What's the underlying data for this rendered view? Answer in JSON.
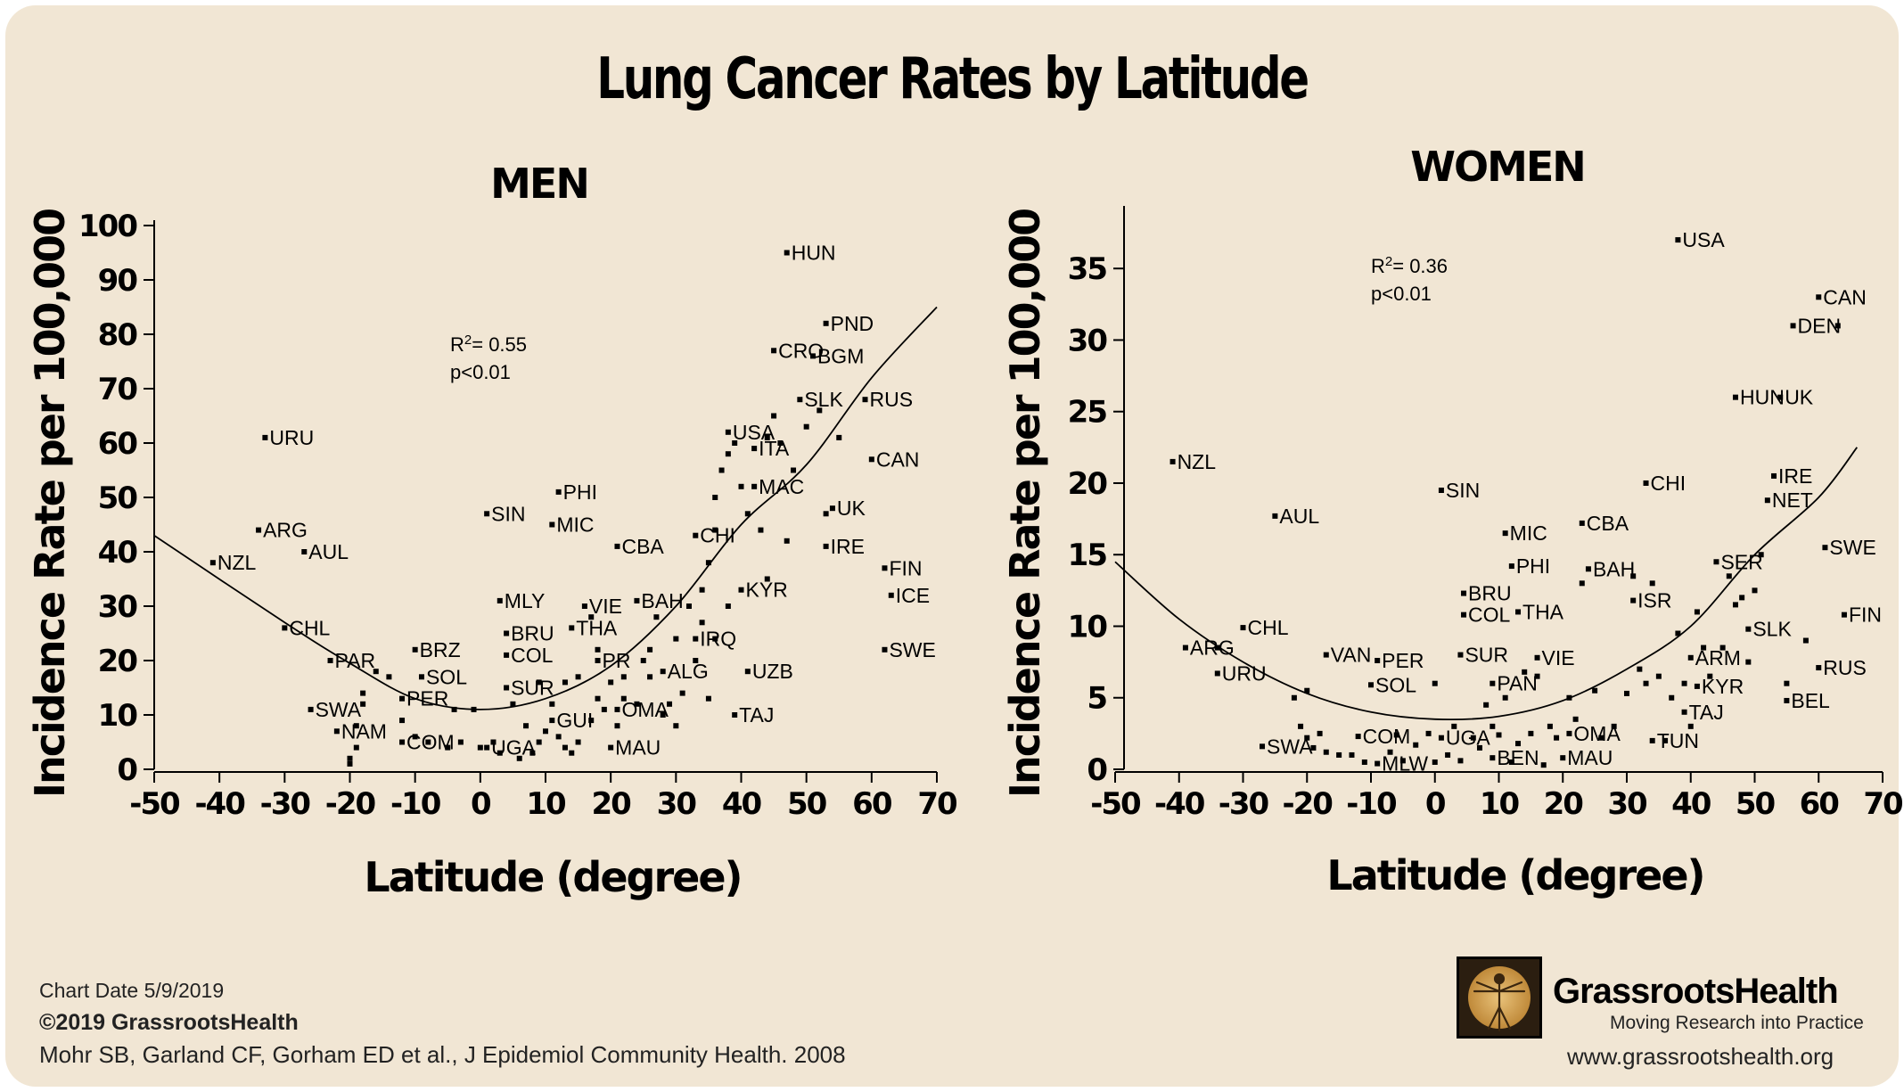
{
  "title": "Lung Cancer Rates by Latitude",
  "footer": {
    "chart_date": "Chart Date 5/9/2019",
    "copyright": "©2019 GrassrootsHealth",
    "citation": "Mohr SB, Garland CF, Gorham ED et al., J Epidemiol Community Health. 2008"
  },
  "brand": {
    "name": "GrassrootsHealth",
    "tagline": "Moving Research into Practice",
    "url": "www.grassrootshealth.org"
  },
  "chart_data": [
    {
      "type": "scatter",
      "title": "MEN",
      "xlabel": "Latitude (degree)",
      "ylabel": "Incidence Rate per 100,000",
      "xlim": [
        -50,
        70
      ],
      "ylim": [
        0,
        100
      ],
      "xticks": [
        -50,
        -40,
        -30,
        -20,
        -10,
        0,
        10,
        20,
        30,
        40,
        50,
        60,
        70
      ],
      "yticks": [
        0,
        10,
        20,
        30,
        40,
        50,
        60,
        70,
        80,
        90,
        100
      ],
      "stats": {
        "r2": "= 0.55",
        "p": "p<0.01"
      },
      "trendline": {
        "type": "quadratic",
        "points": [
          [
            -50,
            43
          ],
          [
            -30,
            27
          ],
          [
            -20,
            19.5
          ],
          [
            -10,
            13
          ],
          [
            0,
            11
          ],
          [
            10,
            13
          ],
          [
            20,
            19
          ],
          [
            30,
            30
          ],
          [
            40,
            45
          ],
          [
            50,
            56
          ],
          [
            60,
            72
          ],
          [
            70,
            85
          ]
        ]
      },
      "labeled_points": [
        {
          "label": "HUN",
          "x": 47,
          "y": 95
        },
        {
          "label": "PND",
          "x": 53,
          "y": 82
        },
        {
          "label": "CRO",
          "x": 45,
          "y": 77
        },
        {
          "label": "BGM",
          "x": 51,
          "y": 76
        },
        {
          "label": "SLK",
          "x": 49,
          "y": 68
        },
        {
          "label": "RUS",
          "x": 59,
          "y": 68
        },
        {
          "label": "USA",
          "x": 38,
          "y": 62
        },
        {
          "label": "URU",
          "x": -33,
          "y": 61
        },
        {
          "label": "ITA",
          "x": 42,
          "y": 59
        },
        {
          "label": "CAN",
          "x": 60,
          "y": 57
        },
        {
          "label": "PHI",
          "x": 12,
          "y": 51
        },
        {
          "label": "MAC",
          "x": 42,
          "y": 52
        },
        {
          "label": "UK",
          "x": 54,
          "y": 48
        },
        {
          "label": "SIN",
          "x": 1,
          "y": 47
        },
        {
          "label": "MIC",
          "x": 11,
          "y": 45
        },
        {
          "label": "ARG",
          "x": -34,
          "y": 44
        },
        {
          "label": "CHI",
          "x": 33,
          "y": 43
        },
        {
          "label": "CBA",
          "x": 21,
          "y": 41
        },
        {
          "label": "IRE",
          "x": 53,
          "y": 41
        },
        {
          "label": "AUL",
          "x": -27,
          "y": 40
        },
        {
          "label": "NZL",
          "x": -41,
          "y": 38
        },
        {
          "label": "FIN",
          "x": 62,
          "y": 37
        },
        {
          "label": "KYR",
          "x": 40,
          "y": 33
        },
        {
          "label": "ICE",
          "x": 63,
          "y": 32
        },
        {
          "label": "BAH",
          "x": 24,
          "y": 31
        },
        {
          "label": "MLY",
          "x": 3,
          "y": 31
        },
        {
          "label": "VIE",
          "x": 16,
          "y": 30
        },
        {
          "label": "THA",
          "x": 14,
          "y": 26
        },
        {
          "label": "CHL",
          "x": -30,
          "y": 26
        },
        {
          "label": "BRU",
          "x": 4,
          "y": 25
        },
        {
          "label": "IRQ",
          "x": 33,
          "y": 24
        },
        {
          "label": "SWE",
          "x": 62,
          "y": 22
        },
        {
          "label": "BRZ",
          "x": -10,
          "y": 22
        },
        {
          "label": "COL",
          "x": 4,
          "y": 21
        },
        {
          "label": "PR",
          "x": 18,
          "y": 20
        },
        {
          "label": "PAR",
          "x": -23,
          "y": 20
        },
        {
          "label": "UZB",
          "x": 41,
          "y": 18
        },
        {
          "label": "ALG",
          "x": 28,
          "y": 18
        },
        {
          "label": "SOL",
          "x": -9,
          "y": 17
        },
        {
          "label": "SUR",
          "x": 4,
          "y": 15
        },
        {
          "label": "PER",
          "x": -12,
          "y": 13
        },
        {
          "label": "SWA",
          "x": -26,
          "y": 11
        },
        {
          "label": "OMA",
          "x": 21,
          "y": 11
        },
        {
          "label": "TAJ",
          "x": 39,
          "y": 10
        },
        {
          "label": "GUI",
          "x": 11,
          "y": 9
        },
        {
          "label": "NAM",
          "x": -22,
          "y": 7
        },
        {
          "label": "COM",
          "x": -12,
          "y": 5
        },
        {
          "label": "UGA",
          "x": 1,
          "y": 4
        },
        {
          "label": "MAU",
          "x": 20,
          "y": 4
        }
      ],
      "unlabeled_points": [
        [
          -18,
          14
        ],
        [
          -16,
          18
        ],
        [
          -14,
          17
        ],
        [
          -18,
          12
        ],
        [
          -19,
          8
        ],
        [
          -19,
          4
        ],
        [
          -20,
          2
        ],
        [
          -20,
          1
        ],
        [
          -12,
          9
        ],
        [
          -10,
          6
        ],
        [
          -8,
          5
        ],
        [
          -5,
          4
        ],
        [
          -3,
          5
        ],
        [
          -1,
          11
        ],
        [
          0,
          4
        ],
        [
          2,
          5
        ],
        [
          3,
          3
        ],
        [
          6,
          2
        ],
        [
          8,
          3
        ],
        [
          9,
          5
        ],
        [
          10,
          7
        ],
        [
          12,
          6
        ],
        [
          13,
          4
        ],
        [
          14,
          3
        ],
        [
          15,
          5
        ],
        [
          17,
          9
        ],
        [
          18,
          13
        ],
        [
          9,
          16
        ],
        [
          11,
          12
        ],
        [
          13,
          16
        ],
        [
          15,
          17
        ],
        [
          19,
          11
        ],
        [
          21,
          8
        ],
        [
          22,
          13
        ],
        [
          24,
          12
        ],
        [
          26,
          22
        ],
        [
          27,
          28
        ],
        [
          28,
          10
        ],
        [
          29,
          12
        ],
        [
          30,
          8
        ],
        [
          31,
          14
        ],
        [
          32,
          30
        ],
        [
          33,
          20
        ],
        [
          34,
          33
        ],
        [
          35,
          38
        ],
        [
          36,
          44
        ],
        [
          36,
          50
        ],
        [
          37,
          55
        ],
        [
          38,
          58
        ],
        [
          39,
          60
        ],
        [
          40,
          52
        ],
        [
          41,
          47
        ],
        [
          43,
          44
        ],
        [
          44,
          61
        ],
        [
          45,
          65
        ],
        [
          46,
          60
        ],
        [
          48,
          55
        ],
        [
          50,
          63
        ],
        [
          52,
          66
        ],
        [
          55,
          61
        ],
        [
          53,
          47
        ],
        [
          47,
          42
        ],
        [
          44,
          35
        ],
        [
          38,
          30
        ],
        [
          36,
          24
        ],
        [
          34,
          27
        ],
        [
          30,
          24
        ],
        [
          25,
          20
        ],
        [
          22,
          17
        ],
        [
          20,
          16
        ],
        [
          17,
          28
        ],
        [
          18,
          22
        ],
        [
          26,
          17
        ],
        [
          35,
          13
        ],
        [
          7,
          8
        ],
        [
          5,
          12
        ],
        [
          -4,
          11
        ]
      ]
    },
    {
      "type": "scatter",
      "title": "WOMEN",
      "xlabel": "Latitude (degree)",
      "ylabel": "Incidence Rate per 100,000",
      "xlim": [
        -50,
        70
      ],
      "ylim": [
        0,
        39
      ],
      "xticks": [
        -50,
        -40,
        -30,
        -20,
        -10,
        0,
        10,
        20,
        30,
        40,
        50,
        60,
        70
      ],
      "yticks": [
        0,
        5,
        10,
        15,
        20,
        25,
        30,
        35
      ],
      "stats": {
        "r2": "= 0.36",
        "p": "p<0.01"
      },
      "trendline": {
        "type": "quadratic",
        "points": [
          [
            -50,
            14.5
          ],
          [
            -40,
            10.5
          ],
          [
            -30,
            7.5
          ],
          [
            -20,
            5.3
          ],
          [
            -10,
            4
          ],
          [
            0,
            3.5
          ],
          [
            10,
            3.7
          ],
          [
            20,
            4.8
          ],
          [
            30,
            7
          ],
          [
            40,
            10
          ],
          [
            50,
            15
          ],
          [
            60,
            19
          ],
          [
            66,
            22.5
          ]
        ]
      },
      "labeled_points": [
        {
          "label": "USA",
          "x": 38,
          "y": 37
        },
        {
          "label": "CAN",
          "x": 60,
          "y": 33
        },
        {
          "label": "DEN",
          "x": 56,
          "y": 31
        },
        {
          "label": "HUN",
          "x": 47,
          "y": 26
        },
        {
          "label": "UK",
          "x": 54,
          "y": 26
        },
        {
          "label": "NZL",
          "x": -41,
          "y": 21.5
        },
        {
          "label": "IRE",
          "x": 53,
          "y": 20.5
        },
        {
          "label": "CHI",
          "x": 33,
          "y": 20
        },
        {
          "label": "SIN",
          "x": 1,
          "y": 19.5
        },
        {
          "label": "NET",
          "x": 52,
          "y": 18.8
        },
        {
          "label": "AUL",
          "x": -25,
          "y": 17.7
        },
        {
          "label": "CBA",
          "x": 23,
          "y": 17.2
        },
        {
          "label": "MIC",
          "x": 11,
          "y": 16.5
        },
        {
          "label": "SWE",
          "x": 61,
          "y": 15.5
        },
        {
          "label": "SER",
          "x": 44,
          "y": 14.5
        },
        {
          "label": "PHI",
          "x": 12,
          "y": 14.2
        },
        {
          "label": "BAH",
          "x": 24,
          "y": 14
        },
        {
          "label": "BRU",
          "x": 4.5,
          "y": 12.3
        },
        {
          "label": "ISR",
          "x": 31,
          "y": 11.8
        },
        {
          "label": "COL",
          "x": 4.5,
          "y": 10.8
        },
        {
          "label": "THA",
          "x": 13,
          "y": 11
        },
        {
          "label": "FIN",
          "x": 64,
          "y": 10.8
        },
        {
          "label": "CHL",
          "x": -30,
          "y": 9.9
        },
        {
          "label": "SLK",
          "x": 49,
          "y": 9.8
        },
        {
          "label": "ARG",
          "x": -39,
          "y": 8.5
        },
        {
          "label": "SUR",
          "x": 4,
          "y": 8
        },
        {
          "label": "VAN",
          "x": -17,
          "y": 8
        },
        {
          "label": "VIE",
          "x": 16,
          "y": 7.8
        },
        {
          "label": "ARM",
          "x": 40,
          "y": 7.8
        },
        {
          "label": "PER",
          "x": -9,
          "y": 7.6
        },
        {
          "label": "RUS",
          "x": 60,
          "y": 7.1
        },
        {
          "label": "URU",
          "x": -34,
          "y": 6.7
        },
        {
          "label": "KYR",
          "x": 41,
          "y": 5.8
        },
        {
          "label": "SOL",
          "x": -10,
          "y": 5.9
        },
        {
          "label": "PAN",
          "x": 9,
          "y": 6
        },
        {
          "label": "BEL",
          "x": 55,
          "y": 4.8
        },
        {
          "label": "TAJ",
          "x": 39,
          "y": 4
        },
        {
          "label": "OMA",
          "x": 21,
          "y": 2.5
        },
        {
          "label": "COM",
          "x": -12,
          "y": 2.3
        },
        {
          "label": "UGA",
          "x": 1,
          "y": 2.2
        },
        {
          "label": "TUN",
          "x": 34,
          "y": 2
        },
        {
          "label": "SWA",
          "x": -27,
          "y": 1.6
        },
        {
          "label": "BEN",
          "x": 9,
          "y": 0.8
        },
        {
          "label": "MAU",
          "x": 20,
          "y": 0.8
        },
        {
          "label": "MLW",
          "x": -9,
          "y": 0.4
        }
      ],
      "unlabeled_points": [
        [
          -34,
          8.5
        ],
        [
          -22,
          5
        ],
        [
          -20,
          5.5
        ],
        [
          -21,
          3
        ],
        [
          -20,
          2.2
        ],
        [
          -19,
          1.5
        ],
        [
          -18,
          2.5
        ],
        [
          -17,
          1.2
        ],
        [
          -15,
          1
        ],
        [
          -13,
          1
        ],
        [
          -11,
          0.5
        ],
        [
          -7,
          1.2
        ],
        [
          -6,
          2.4
        ],
        [
          -5,
          0.6
        ],
        [
          -3,
          1.7
        ],
        [
          -1,
          2.5
        ],
        [
          0,
          6
        ],
        [
          0,
          0.5
        ],
        [
          2,
          1
        ],
        [
          3,
          3
        ],
        [
          4,
          0.6
        ],
        [
          6,
          2.2
        ],
        [
          7,
          1.5
        ],
        [
          8,
          4.5
        ],
        [
          9,
          3
        ],
        [
          10,
          2.4
        ],
        [
          11,
          5
        ],
        [
          12,
          0.5
        ],
        [
          13,
          1.8
        ],
        [
          14,
          6.8
        ],
        [
          15,
          2.5
        ],
        [
          16,
          6.5
        ],
        [
          17,
          0.3
        ],
        [
          18,
          3
        ],
        [
          19,
          2.2
        ],
        [
          21,
          5
        ],
        [
          22,
          3.5
        ],
        [
          23,
          13
        ],
        [
          25,
          5.5
        ],
        [
          26,
          2.2
        ],
        [
          28,
          3
        ],
        [
          30,
          5.3
        ],
        [
          31,
          13.5
        ],
        [
          32,
          7
        ],
        [
          33,
          6
        ],
        [
          34,
          13
        ],
        [
          35,
          6.5
        ],
        [
          36,
          2
        ],
        [
          37,
          5
        ],
        [
          38,
          9.5
        ],
        [
          39,
          6
        ],
        [
          40,
          3
        ],
        [
          41,
          11
        ],
        [
          42,
          8.5
        ],
        [
          43,
          6.5
        ],
        [
          45,
          8.5
        ],
        [
          46,
          13.5
        ],
        [
          47,
          11.5
        ],
        [
          48,
          12
        ],
        [
          49,
          7.5
        ],
        [
          50,
          12.5
        ],
        [
          51,
          15
        ],
        [
          55,
          6
        ],
        [
          58,
          9
        ],
        [
          63,
          31
        ]
      ]
    }
  ]
}
